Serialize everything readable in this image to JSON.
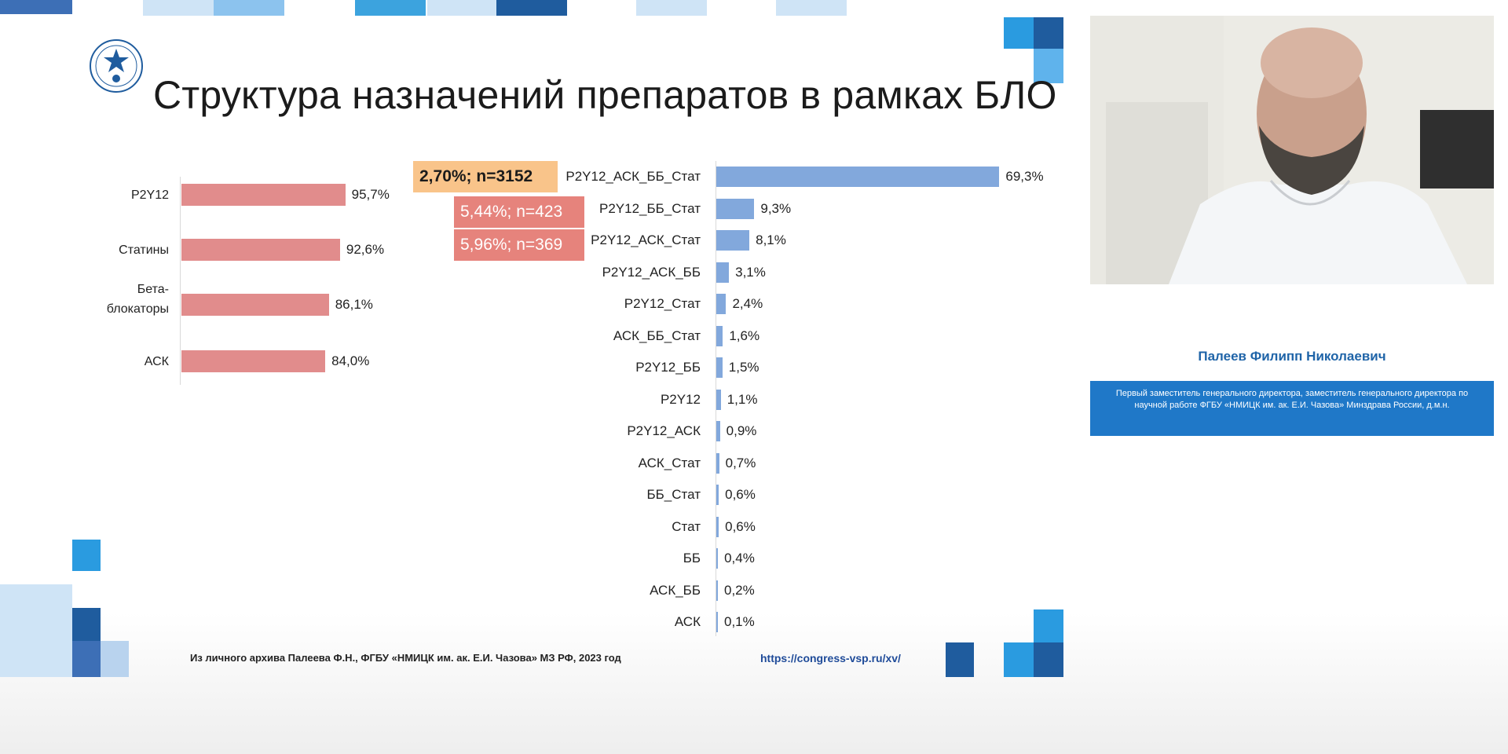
{
  "slide": {
    "title": "Структура назначений препаратов в рамках БЛО",
    "footnote": "Из личного архива Палеева Ф.Н., ФГБУ «НМИЦК им. ак. Е.И. Чазова» МЗ РФ, 2023 год",
    "url": "https://congress-vsp.ru/xv/"
  },
  "callouts": [
    {
      "text": "2,70%; n=3152",
      "color": "#f9c48a"
    },
    {
      "text": "5,44%; n=423",
      "color": "#e6837c"
    },
    {
      "text": "5,96%; n=369",
      "color": "#e6837c"
    }
  ],
  "chart_data": [
    {
      "type": "bar",
      "orientation": "horizontal",
      "categories": [
        "P2Y12",
        "Статины",
        "Бета-блокаторы",
        "АСК"
      ],
      "values": [
        95.7,
        92.6,
        86.1,
        84.0
      ],
      "value_labels": [
        "95,7%",
        "92,6%",
        "86,1%",
        "84,0%"
      ],
      "color": "#e18c8c",
      "grid": false
    },
    {
      "type": "bar",
      "orientation": "horizontal",
      "categories": [
        "P2Y12_АСК_ББ_Стат",
        "P2Y12_ББ_Стат",
        "P2Y12_АСК_Стат",
        "P2Y12_АСК_ББ",
        "P2Y12_Стат",
        "АСК_ББ_Стат",
        "P2Y12_ББ",
        "P2Y12",
        "P2Y12_АСК",
        "АСК_Стат",
        "ББ_Стат",
        "Стат",
        "ББ",
        "АСК_ББ",
        "АСК"
      ],
      "values": [
        69.3,
        9.3,
        8.1,
        3.1,
        2.4,
        1.6,
        1.5,
        1.1,
        0.9,
        0.7,
        0.6,
        0.6,
        0.4,
        0.2,
        0.1
      ],
      "value_labels": [
        "69,3%",
        "9,3%",
        "8,1%",
        "3,1%",
        "2,4%",
        "1,6%",
        "1,5%",
        "1,1%",
        "0,9%",
        "0,7%",
        "0,6%",
        "0,6%",
        "0,4%",
        "0,2%",
        "0,1%"
      ],
      "color": "#82a8dc",
      "grid": false
    }
  ],
  "speaker": {
    "name": "Палеев Филипп Николаевич",
    "title": "Первый заместитель генерального директора, заместитель генерального директора по научной работе ФГБУ «НМИЦК им. ак. Е.И. Чазова» Минздрава России, д.м.н."
  }
}
